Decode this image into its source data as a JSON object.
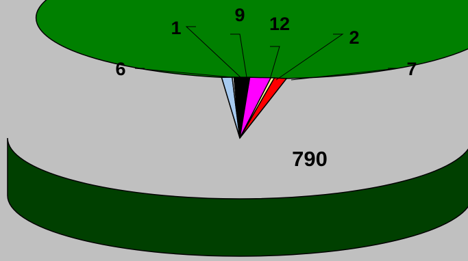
{
  "chart_data": {
    "type": "pie",
    "style": "3d",
    "title": "",
    "slices": [
      {
        "label": "790",
        "value": 790,
        "color": "#008000"
      },
      {
        "label": "7",
        "value": 7,
        "color": "#ff0000"
      },
      {
        "label": "2",
        "value": 2,
        "color": "#ffff99"
      },
      {
        "label": "12",
        "value": 12,
        "color": "#ff00ff"
      },
      {
        "label": "9",
        "value": 9,
        "color": "#000000"
      },
      {
        "label": "1",
        "value": 1,
        "color": "#ffffff"
      },
      {
        "label": "6",
        "value": 6,
        "color": "#a6caf0"
      }
    ],
    "background": "#c0c0c0",
    "side_color": "#004000"
  }
}
